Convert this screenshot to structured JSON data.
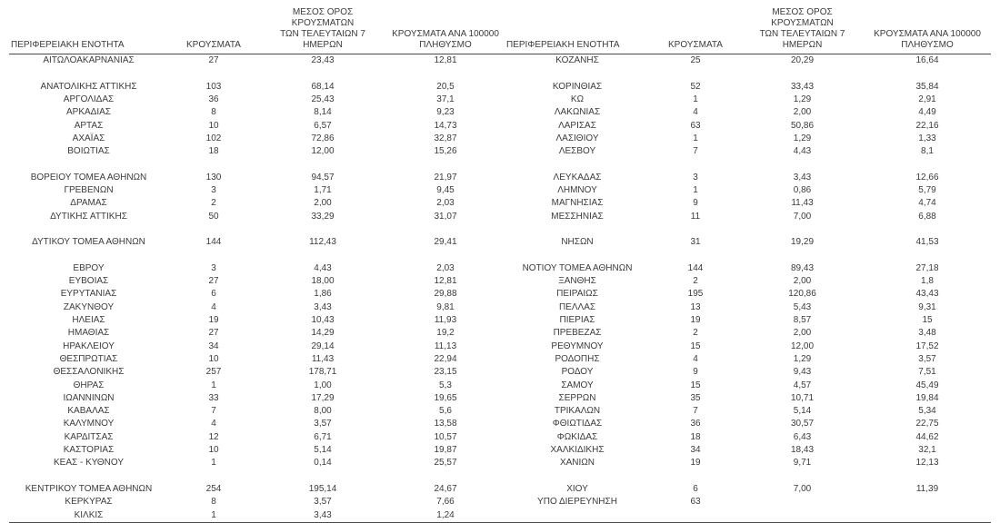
{
  "table": {
    "headers": {
      "region": "ΠΕΡΙΦΕΡΕΙΑΚΗ ΕΝΟΤΗΤΑ",
      "cases": "ΚΡΟΥΣΜΑΤΑ",
      "avg7": "ΜΕΣΟΣ ΟΡΟΣ ΚΡΟΥΣΜΑΤΩΝ\nΤΩΝ ΤΕΛΕΥΤΑΙΩΝ 7\nΗΜΕΡΩΝ",
      "per100k": "ΚΡΟΥΣΜΑΤΑ ΑΝΑ 100000\nΠΛΗΘΥΣΜΟ"
    },
    "left_rows": [
      [
        "ΑΙΤΩΛΟΑΚΑΡΝΑΝΙΑΣ",
        "27",
        "23,43",
        "12,81"
      ],
      [
        "",
        "",
        "",
        ""
      ],
      [
        "ΑΝΑΤΟΛΙΚΗΣ ΑΤΤΙΚΗΣ",
        "103",
        "68,14",
        "20,5"
      ],
      [
        "ΑΡΓΟΛΙΔΑΣ",
        "36",
        "25,43",
        "37,1"
      ],
      [
        "ΑΡΚΑΔΙΑΣ",
        "8",
        "8,14",
        "9,23"
      ],
      [
        "ΑΡΤΑΣ",
        "10",
        "6,57",
        "14,73"
      ],
      [
        "ΑΧΑΪΑΣ",
        "102",
        "72,86",
        "32,87"
      ],
      [
        "ΒΟΙΩΤΙΑΣ",
        "18",
        "12,00",
        "15,26"
      ],
      [
        "",
        "",
        "",
        ""
      ],
      [
        "ΒΟΡΕΙΟΥ ΤΟΜΕΑ ΑΘΗΝΩΝ",
        "130",
        "94,57",
        "21,97"
      ],
      [
        "ΓΡΕΒΕΝΩΝ",
        "3",
        "1,71",
        "9,45"
      ],
      [
        "ΔΡΑΜΑΣ",
        "2",
        "2,00",
        "2,03"
      ],
      [
        "ΔΥΤΙΚΗΣ ΑΤΤΙΚΗΣ",
        "50",
        "33,29",
        "31,07"
      ],
      [
        "",
        "",
        "",
        ""
      ],
      [
        "ΔΥΤΙΚΟΥ ΤΟΜΕΑ ΑΘΗΝΩΝ",
        "144",
        "112,43",
        "29,41"
      ],
      [
        "",
        "",
        "",
        ""
      ],
      [
        "ΕΒΡΟΥ",
        "3",
        "4,43",
        "2,03"
      ],
      [
        "ΕΥΒΟΙΑΣ",
        "27",
        "18,00",
        "12,81"
      ],
      [
        "ΕΥΡΥΤΑΝΙΑΣ",
        "6",
        "1,86",
        "29,88"
      ],
      [
        "ΖΑΚΥΝΘΟΥ",
        "4",
        "3,43",
        "9,81"
      ],
      [
        "ΗΛΕΙΑΣ",
        "19",
        "10,43",
        "11,93"
      ],
      [
        "ΗΜΑΘΙΑΣ",
        "27",
        "14,29",
        "19,2"
      ],
      [
        "ΗΡΑΚΛΕΙΟΥ",
        "34",
        "29,14",
        "11,13"
      ],
      [
        "ΘΕΣΠΡΩΤΙΑΣ",
        "10",
        "11,43",
        "22,94"
      ],
      [
        "ΘΕΣΣΑΛΟΝΙΚΗΣ",
        "257",
        "178,71",
        "23,15"
      ],
      [
        "ΘΗΡΑΣ",
        "1",
        "1,00",
        "5,3"
      ],
      [
        "ΙΩΑΝΝΙΝΩΝ",
        "33",
        "17,29",
        "19,65"
      ],
      [
        "ΚΑΒΑΛΑΣ",
        "7",
        "8,00",
        "5,6"
      ],
      [
        "ΚΑΛΥΜΝΟΥ",
        "4",
        "3,57",
        "13,58"
      ],
      [
        "ΚΑΡΔΙΤΣΑΣ",
        "12",
        "6,71",
        "10,57"
      ],
      [
        "ΚΑΣΤΟΡΙΑΣ",
        "10",
        "5,14",
        "19,87"
      ],
      [
        "ΚΕΑΣ - ΚΥΘΝΟΥ",
        "1",
        "0,14",
        "25,57"
      ],
      [
        "",
        "",
        "",
        ""
      ],
      [
        "ΚΕΝΤΡΙΚΟΥ ΤΟΜΕΑ ΑΘΗΝΩΝ",
        "254",
        "195,14",
        "24,67"
      ],
      [
        "ΚΕΡΚΥΡΑΣ",
        "8",
        "3,57",
        "7,66"
      ],
      [
        "ΚΙΛΚΙΣ",
        "1",
        "3,43",
        "1,24"
      ]
    ],
    "right_rows": [
      [
        "ΚΟΖΑΝΗΣ",
        "25",
        "20,29",
        "16,64"
      ],
      [
        "",
        "",
        "",
        ""
      ],
      [
        "ΚΟΡΙΝΘΙΑΣ",
        "52",
        "33,43",
        "35,84"
      ],
      [
        "ΚΩ",
        "1",
        "1,29",
        "2,91"
      ],
      [
        "ΛΑΚΩΝΙΑΣ",
        "4",
        "2,00",
        "4,49"
      ],
      [
        "ΛΑΡΙΣΑΣ",
        "63",
        "50,86",
        "22,16"
      ],
      [
        "ΛΑΣΙΘΙΟΥ",
        "1",
        "1,29",
        "1,33"
      ],
      [
        "ΛΕΣΒΟΥ",
        "7",
        "4,43",
        "8,1"
      ],
      [
        "",
        "",
        "",
        ""
      ],
      [
        "ΛΕΥΚΑΔΑΣ",
        "3",
        "3,43",
        "12,66"
      ],
      [
        "ΛΗΜΝΟΥ",
        "1",
        "0,86",
        "5,79"
      ],
      [
        "ΜΑΓΝΗΣΙΑΣ",
        "9",
        "11,43",
        "4,74"
      ],
      [
        "ΜΕΣΣΗΝΙΑΣ",
        "11",
        "7,00",
        "6,88"
      ],
      [
        "",
        "",
        "",
        ""
      ],
      [
        "ΝΗΣΩΝ",
        "31",
        "19,29",
        "41,53"
      ],
      [
        "",
        "",
        "",
        ""
      ],
      [
        "ΝΟΤΙΟΥ ΤΟΜΕΑ ΑΘΗΝΩΝ",
        "144",
        "89,43",
        "27,18"
      ],
      [
        "ΞΑΝΘΗΣ",
        "2",
        "2,00",
        "1,8"
      ],
      [
        "ΠΕΙΡΑΙΩΣ",
        "195",
        "120,86",
        "43,43"
      ],
      [
        "ΠΕΛΛΑΣ",
        "13",
        "5,43",
        "9,31"
      ],
      [
        "ΠΙΕΡΙΑΣ",
        "19",
        "8,57",
        "15"
      ],
      [
        "ΠΡΕΒΕΖΑΣ",
        "2",
        "2,00",
        "3,48"
      ],
      [
        "ΡΕΘΥΜΝΟΥ",
        "15",
        "12,00",
        "17,52"
      ],
      [
        "ΡΟΔΟΠΗΣ",
        "4",
        "1,29",
        "3,57"
      ],
      [
        "ΡΟΔΟΥ",
        "9",
        "9,43",
        "7,51"
      ],
      [
        "ΣΑΜΟΥ",
        "15",
        "4,57",
        "45,49"
      ],
      [
        "ΣΕΡΡΩΝ",
        "35",
        "10,71",
        "19,84"
      ],
      [
        "ΤΡΙΚΑΛΩΝ",
        "7",
        "5,14",
        "5,34"
      ],
      [
        "ΦΘΙΩΤΙΔΑΣ",
        "36",
        "30,57",
        "22,75"
      ],
      [
        "ΦΩΚΙΔΑΣ",
        "18",
        "6,43",
        "44,62"
      ],
      [
        "ΧΑΛΚΙΔΙΚΗΣ",
        "34",
        "18,43",
        "32,1"
      ],
      [
        "ΧΑΝΙΩΝ",
        "19",
        "9,71",
        "12,13"
      ],
      [
        "",
        "",
        "",
        ""
      ],
      [
        "ΧΙΟΥ",
        "6",
        "7,00",
        "11,39"
      ],
      [
        "ΥΠΟ ΔΙΕΡΕΥΝΗΣΗ",
        "63",
        "",
        ""
      ],
      [
        "",
        "",
        "",
        ""
      ]
    ]
  }
}
